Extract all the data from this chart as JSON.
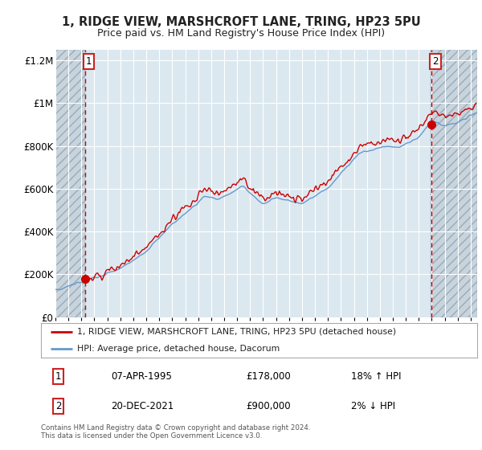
{
  "title_line1": "1, RIDGE VIEW, MARSHCROFT LANE, TRING, HP23 5PU",
  "title_line2": "Price paid vs. HM Land Registry's House Price Index (HPI)",
  "legend_line1": "1, RIDGE VIEW, MARSHCROFT LANE, TRING, HP23 5PU (detached house)",
  "legend_line2": "HPI: Average price, detached house, Dacorum",
  "transaction1_date": "07-APR-1995",
  "transaction1_price": "£178,000",
  "transaction1_hpi": "18% ↑ HPI",
  "transaction2_date": "20-DEC-2021",
  "transaction2_price": "£900,000",
  "transaction2_hpi": "2% ↓ HPI",
  "footer": "Contains HM Land Registry data © Crown copyright and database right 2024.\nThis data is licensed under the Open Government Licence v3.0.",
  "hpi_color": "#6699cc",
  "price_color": "#cc0000",
  "transaction1_x": 1995.27,
  "transaction1_y": 178000,
  "transaction2_x": 2021.97,
  "transaction2_y": 900000,
  "ylim": [
    0,
    1250000
  ],
  "xlim_start": 1993.0,
  "xlim_end": 2025.5,
  "plot_bg": "#dce8f0",
  "fig_bg": "#ffffff",
  "hatch_bg": "#c8d4dc",
  "grid_color": "#ffffff",
  "yticks": [
    0,
    200000,
    400000,
    600000,
    800000,
    1000000,
    1200000
  ],
  "ytick_labels": [
    "£0",
    "£200K",
    "£400K",
    "£600K",
    "£800K",
    "£1M",
    "£1.2M"
  ]
}
